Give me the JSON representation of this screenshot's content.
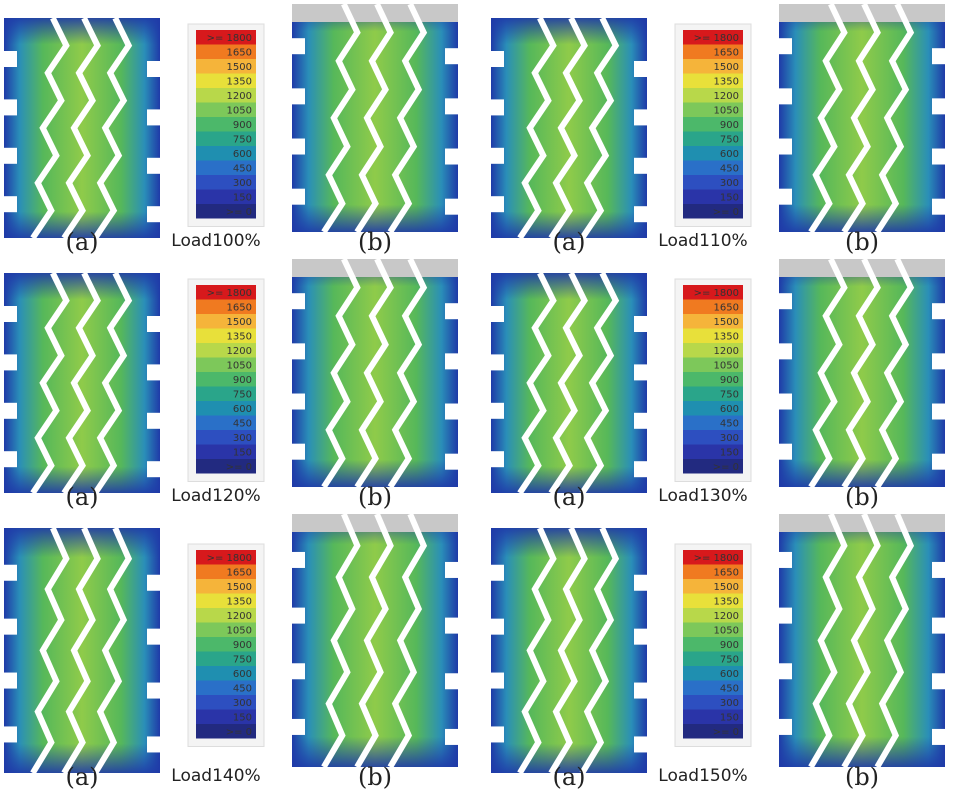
{
  "panels": [
    {
      "load": "Load100%",
      "a_label": "(a)",
      "b_label": "(b)",
      "legend": [
        ">= 1800",
        "1650",
        "1500",
        "1350",
        "1200",
        "1050",
        "900",
        "750",
        "600",
        "450",
        "300",
        "150",
        ">= 0"
      ]
    },
    {
      "load": "Load110%",
      "a_label": "(a)",
      "b_label": "(b)",
      "legend": [
        ">= 1800",
        "1650",
        "1500",
        "1350",
        "1200",
        "1050",
        "900",
        "750",
        "600",
        "450",
        "300",
        "150",
        ">= 0"
      ]
    },
    {
      "load": "Load120%",
      "a_label": "(a)",
      "b_label": "(b)",
      "legend": [
        ">= 1800",
        "1650",
        "1500",
        "1350",
        "1200",
        "1050",
        "900",
        "750",
        "600",
        "450",
        "300",
        "150",
        ">= 0"
      ]
    },
    {
      "load": "Load130%",
      "a_label": "(a)",
      "b_label": "(b)",
      "legend": [
        ">= 1800",
        "1650",
        "1500",
        "1350",
        "1200",
        "1050",
        "900",
        "750",
        "600",
        "450",
        "300",
        "150",
        ">= 0"
      ]
    },
    {
      "load": "Load140%",
      "a_label": "(a)",
      "b_label": "(b)",
      "legend": [
        ">= 1800",
        "1650",
        "1500",
        "1350",
        "1200",
        "1050",
        "900",
        "750",
        "600",
        "450",
        "300",
        "150",
        ">= 0"
      ]
    },
    {
      "load": "Load150%",
      "a_label": "(a)",
      "b_label": "(b)",
      "legend": [
        ">= 1800",
        "1650",
        "1500",
        "1350",
        "1200",
        "1050",
        "900",
        "750",
        "600",
        "450",
        "300",
        "150",
        ">= 0"
      ]
    }
  ]
}
